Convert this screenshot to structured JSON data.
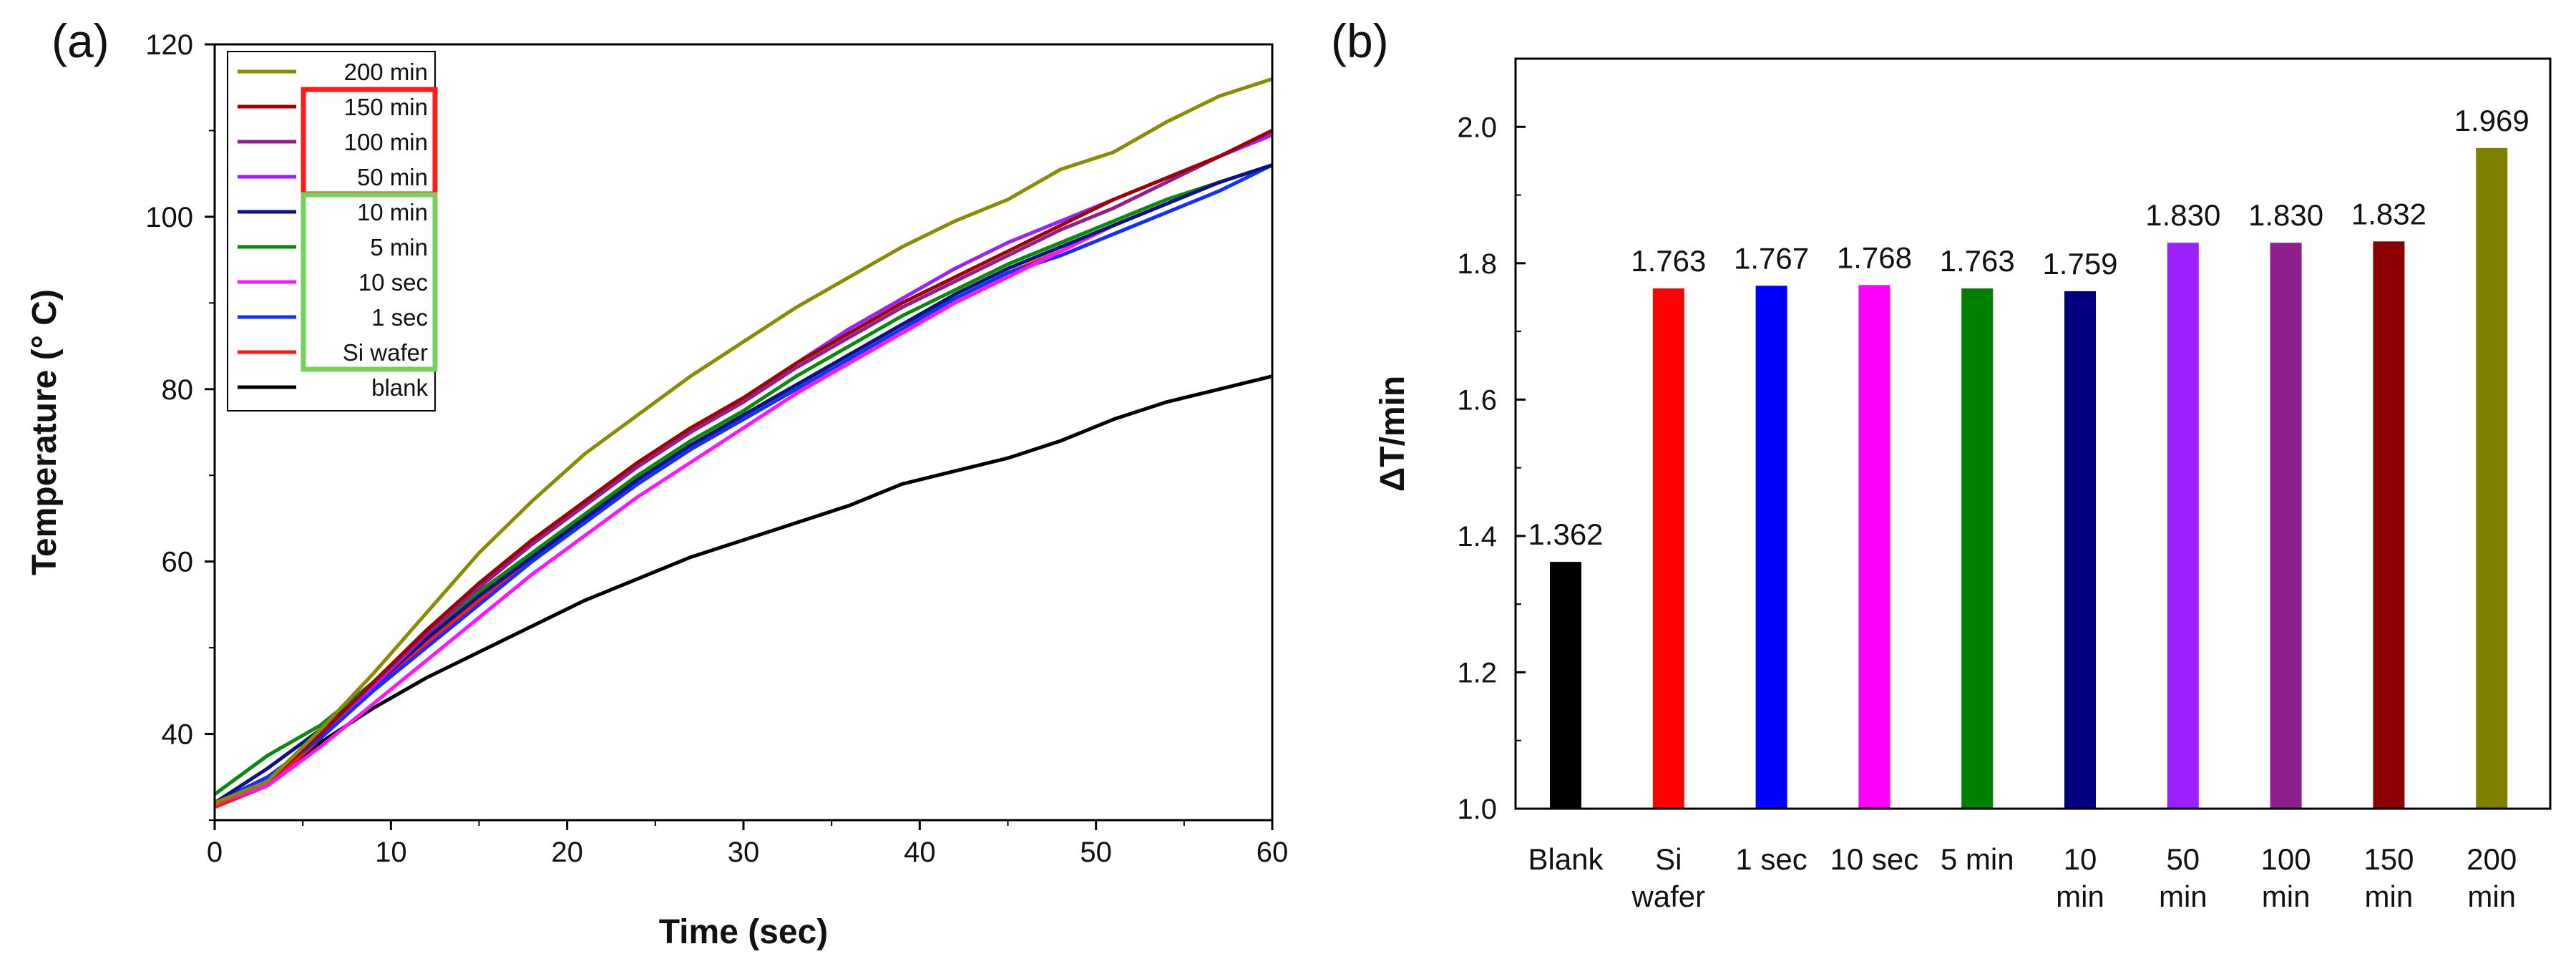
{
  "chart_data": [
    {
      "panel": "(a)",
      "type": "line",
      "title": "",
      "xlabel": "Time (sec)",
      "ylabel": "Temperature (° C)",
      "xlim": [
        0,
        60
      ],
      "ylim": [
        30,
        120
      ],
      "xticks": [
        0,
        10,
        20,
        30,
        40,
        50,
        60
      ],
      "yticks": [
        40,
        60,
        80,
        100,
        120
      ],
      "legend_location": "top-left",
      "legend_groups": [
        {
          "members": [
            "150 min",
            "100 min",
            "50 min"
          ],
          "color": "#ff1a1a"
        },
        {
          "members": [
            "10 min",
            "5 min",
            "10 sec",
            "1 sec",
            "Si wafer"
          ],
          "color": "#77d15a"
        }
      ],
      "series": [
        {
          "name": "200 min",
          "color": "#8b8b00",
          "x": [
            0,
            3,
            6,
            9,
            12,
            15,
            18,
            21,
            24,
            27,
            30,
            33,
            36,
            39,
            42,
            45,
            48,
            51,
            54,
            57,
            60
          ],
          "y": [
            32,
            34.5,
            40.5,
            47,
            54,
            61,
            67,
            72.5,
            77,
            81.5,
            85.5,
            89.5,
            93,
            96.5,
            99.5,
            102,
            105.5,
            107.5,
            111,
            114,
            116
          ]
        },
        {
          "name": "150 min",
          "color": "#a00000",
          "x": [
            0,
            3,
            6,
            9,
            12,
            15,
            18,
            21,
            24,
            27,
            30,
            33,
            36,
            39,
            42,
            45,
            48,
            51,
            54,
            57,
            60
          ],
          "y": [
            32,
            34.5,
            40,
            46,
            52,
            57.5,
            62.5,
            67,
            71.5,
            75.5,
            79,
            83,
            86.5,
            90,
            93,
            96,
            99,
            102,
            104.5,
            107,
            110
          ]
        },
        {
          "name": "100 min",
          "color": "#8e1f8e",
          "x": [
            0,
            3,
            6,
            9,
            12,
            15,
            18,
            21,
            24,
            27,
            30,
            33,
            36,
            39,
            42,
            45,
            48,
            51,
            54,
            57,
            60
          ],
          "y": [
            32,
            34.5,
            40,
            46,
            51.5,
            57,
            62,
            66.5,
            71,
            75,
            78.5,
            82.5,
            86,
            89.5,
            92.5,
            95.5,
            98.5,
            101,
            104,
            107,
            110
          ]
        },
        {
          "name": "50 min",
          "color": "#9b1fff",
          "x": [
            0,
            3,
            6,
            9,
            12,
            15,
            18,
            21,
            24,
            27,
            30,
            33,
            36,
            39,
            42,
            45,
            48,
            51,
            54,
            57,
            60
          ],
          "y": [
            32,
            34.5,
            40,
            45.5,
            51.5,
            57,
            62,
            66.5,
            71,
            75,
            79,
            83,
            87,
            90.5,
            94,
            97,
            99.5,
            102,
            104.5,
            107,
            109.5
          ]
        },
        {
          "name": "10 min",
          "color": "#0b1287",
          "x": [
            0,
            3,
            6,
            9,
            12,
            15,
            18,
            21,
            24,
            27,
            30,
            33,
            36,
            39,
            42,
            45,
            48,
            51,
            54,
            57,
            60
          ],
          "y": [
            32,
            36,
            40.5,
            45.5,
            51,
            56,
            60.5,
            65,
            69.5,
            73.5,
            77,
            80.5,
            84,
            87.5,
            91,
            94,
            96.5,
            99,
            101.5,
            104,
            106
          ]
        },
        {
          "name": "5 min",
          "color": "#0a8a0a",
          "x": [
            0,
            3,
            6,
            9,
            12,
            15,
            18,
            21,
            24,
            27,
            30,
            33,
            36,
            39,
            42,
            45,
            48,
            51,
            54,
            57,
            60
          ],
          "y": [
            33,
            37.5,
            41,
            46,
            51.5,
            56.5,
            61,
            65.5,
            70,
            74,
            77.5,
            81.5,
            85,
            88.5,
            91.5,
            94.5,
            97,
            99.5,
            102,
            104,
            106
          ]
        },
        {
          "name": "10 sec",
          "color": "#ff14ff",
          "x": [
            0,
            3,
            6,
            9,
            12,
            15,
            18,
            21,
            24,
            27,
            30,
            33,
            36,
            39,
            42,
            45,
            48,
            51,
            54,
            57,
            60
          ],
          "y": [
            32,
            34,
            38.5,
            43.5,
            48.5,
            53.5,
            58.5,
            63,
            67.5,
            71.5,
            75.5,
            79.5,
            83,
            86.5,
            90,
            93,
            96,
            99,
            101.5,
            104,
            106
          ]
        },
        {
          "name": "1 sec",
          "color": "#1430ff",
          "x": [
            0,
            3,
            6,
            9,
            12,
            15,
            18,
            21,
            24,
            27,
            30,
            33,
            36,
            39,
            42,
            45,
            48,
            51,
            54,
            57,
            60
          ],
          "y": [
            32,
            35,
            39.5,
            45,
            50,
            55,
            60,
            64.5,
            69,
            73,
            76.5,
            80,
            83.5,
            87,
            90.5,
            93.5,
            95.5,
            98,
            100.5,
            103,
            106
          ]
        },
        {
          "name": "Si wafer",
          "color": "#ff1a1a",
          "x": [
            0,
            3,
            6,
            9,
            12,
            15,
            18,
            21,
            24,
            27,
            30,
            33,
            36,
            39,
            42,
            45,
            48,
            51,
            54,
            57,
            60
          ],
          "y": [
            31.5,
            34,
            39.5,
            45,
            50.5,
            55.5,
            60.5,
            65,
            69,
            73,
            77,
            80.5,
            84,
            87.5,
            90.5,
            93.5,
            96,
            99,
            101.5,
            104,
            106
          ]
        },
        {
          "name": "blank",
          "color": "#000000",
          "x": [
            0,
            3,
            6,
            9,
            12,
            15,
            18,
            21,
            24,
            27,
            30,
            33,
            36,
            39,
            42,
            45,
            48,
            51,
            54,
            57,
            60
          ],
          "y": [
            32,
            34,
            39,
            43,
            46.5,
            49.5,
            52.5,
            55.5,
            58,
            60.5,
            62.5,
            64.5,
            66.5,
            69,
            70.5,
            72,
            74,
            76.5,
            78.5,
            80,
            81.5
          ]
        }
      ]
    },
    {
      "panel": "(b)",
      "type": "bar",
      "title": "",
      "xlabel": "",
      "ylabel": "ΔT/min",
      "ylim": [
        1.0,
        2.1
      ],
      "yticks": [
        "1.0",
        "1.2",
        "1.4",
        "1.6",
        "1.8",
        "2.0"
      ],
      "categories": [
        [
          "Blank"
        ],
        [
          "Si",
          "wafer"
        ],
        [
          "1 sec"
        ],
        [
          "10 sec"
        ],
        [
          "5 min"
        ],
        [
          "10",
          "min"
        ],
        [
          "50",
          "min"
        ],
        [
          "100",
          "min"
        ],
        [
          "150",
          "min"
        ],
        [
          "200",
          "min"
        ]
      ],
      "values": [
        1.362,
        1.763,
        1.767,
        1.768,
        1.763,
        1.759,
        1.83,
        1.83,
        1.832,
        1.969
      ],
      "value_labels": [
        "1.362",
        "1.763",
        "1.767",
        "1.768",
        "1.763",
        "1.759",
        "1.830",
        "1.830",
        "1.832",
        "1.969"
      ],
      "colors": [
        "#000000",
        "#ff0000",
        "#0000ff",
        "#ff00ff",
        "#008000",
        "#000080",
        "#9b1fff",
        "#8e1f8e",
        "#8b0000",
        "#808000"
      ]
    }
  ]
}
